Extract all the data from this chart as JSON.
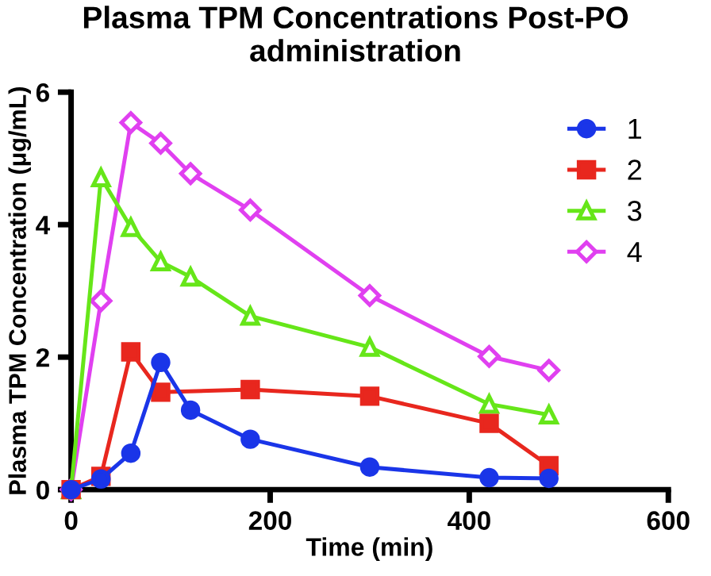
{
  "chart_data": {
    "type": "line",
    "title": "Plasma TPM Concentrations Post-PO administration",
    "xlabel": "Time (min)",
    "ylabel": "Plasma TPM Concentration (μg/mL)",
    "series": [
      {
        "name": "1",
        "color": "#1a35e8",
        "marker": "circle",
        "x": [
          0,
          30,
          60,
          90,
          120,
          180,
          300,
          420,
          480
        ],
        "values": [
          0,
          0.16,
          0.55,
          1.92,
          1.2,
          0.76,
          0.34,
          0.18,
          0.17
        ]
      },
      {
        "name": "2",
        "color": "#e8271e",
        "marker": "square",
        "x": [
          0,
          30,
          60,
          90,
          180,
          300,
          420,
          480
        ],
        "values": [
          0,
          0.2,
          2.08,
          1.47,
          1.51,
          1.41,
          1.0,
          0.36
        ]
      },
      {
        "name": "3",
        "color": "#66e619",
        "marker": "triangle",
        "x": [
          0,
          30,
          60,
          90,
          120,
          180,
          300,
          420,
          480
        ],
        "values": [
          0,
          4.71,
          3.96,
          3.44,
          3.21,
          2.62,
          2.15,
          1.29,
          1.13
        ]
      },
      {
        "name": "4",
        "color": "#e040f0",
        "marker": "diamond",
        "x": [
          0,
          30,
          60,
          90,
          120,
          180,
          300,
          420,
          480
        ],
        "values": [
          0,
          2.85,
          5.54,
          5.23,
          4.77,
          4.22,
          2.93,
          2.01,
          1.8
        ]
      }
    ],
    "xlim": [
      0,
      600
    ],
    "xticks": [
      0,
      200,
      400,
      600
    ],
    "ylim": [
      0,
      6
    ],
    "yticks": [
      0,
      2,
      4,
      6
    ],
    "grid": false,
    "legend": "top right",
    "line_style": "solid"
  }
}
